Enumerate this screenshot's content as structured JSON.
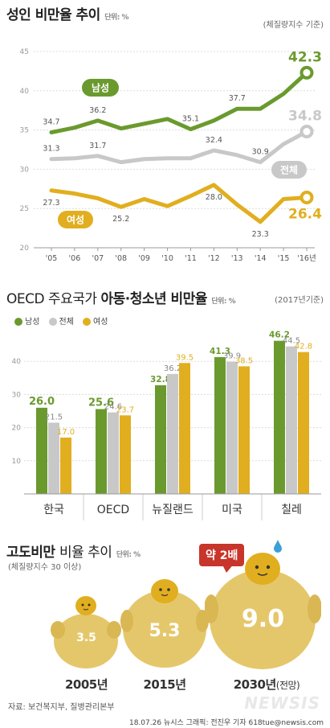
{
  "section1": {
    "title": "성인 비만율 추이",
    "unit": "단위: %",
    "note": "(체질량지수 기준)"
  },
  "section2": {
    "title_prefix": "OECD 주요국가 ",
    "title_bold": "아동·청소년 비만율",
    "unit": "단위: %",
    "note": "(2017년기준)",
    "legend": [
      {
        "label": "남성",
        "color": "#6a9a2e"
      },
      {
        "label": "전체",
        "color": "#c8c8c8"
      },
      {
        "label": "여성",
        "color": "#e1ae1f"
      }
    ]
  },
  "section3": {
    "title_bold": "고도비만 ",
    "title_light": "비율 추이",
    "unit": "단위: %",
    "note": "(체질량지수 30 이상)",
    "badge": "약 2배",
    "items": [
      {
        "year": "2005년",
        "suffix": "",
        "value": "3.5"
      },
      {
        "year": "2015년",
        "suffix": "",
        "value": "5.3"
      },
      {
        "year": "2030년",
        "suffix": "(전망)",
        "value": "9.0"
      }
    ]
  },
  "footer": {
    "source": "자료: 보건복지부, 질병관리본부",
    "credit": "18.07.26 뉴시스 그래픽: 전진우 기자 618tue@newsis.com",
    "logo": "NEWSIS"
  },
  "chart_data": [
    {
      "type": "line",
      "title": "성인 비만율 추이",
      "x": [
        "'05",
        "'06",
        "'07",
        "'08",
        "'09",
        "'10",
        "'11",
        "'12",
        "'13",
        "'14",
        "'15",
        "'16년"
      ],
      "ylim": [
        20,
        45
      ],
      "yticks": [
        20,
        25,
        30,
        35,
        40,
        45
      ],
      "series": [
        {
          "name": "남성",
          "color": "#6a9a2e",
          "values": [
            34.7,
            35.3,
            36.2,
            35.2,
            35.8,
            36.4,
            35.1,
            36.2,
            37.7,
            37.7,
            39.6,
            42.3
          ],
          "labels": {
            "0": "34.7",
            "2": "36.2",
            "6": "35.1",
            "8": "37.7",
            "11": "42.3"
          }
        },
        {
          "name": "전체",
          "color": "#c8c8c8",
          "values": [
            31.3,
            31.4,
            31.7,
            30.9,
            31.3,
            31.4,
            31.4,
            32.4,
            31.8,
            30.9,
            33.2,
            34.8
          ],
          "labels": {
            "0": "31.3",
            "2": "31.7",
            "7": "32.4",
            "9": "30.9",
            "11": "34.8"
          }
        },
        {
          "name": "여성",
          "color": "#e1ae1f",
          "values": [
            27.3,
            26.9,
            26.3,
            25.2,
            26.2,
            25.3,
            26.6,
            28.0,
            25.5,
            23.3,
            26.2,
            26.4
          ],
          "labels": {
            "0": "27.3",
            "3": "25.2",
            "7": "28.0",
            "9": "23.3",
            "11": "26.4"
          }
        }
      ]
    },
    {
      "type": "bar",
      "title": "OECD 주요국가 아동·청소년 비만율",
      "categories": [
        "한국",
        "OECD",
        "뉴질랜드",
        "미국",
        "칠레"
      ],
      "ylim": [
        0,
        50
      ],
      "yticks": [
        10,
        20,
        30,
        40
      ],
      "series": [
        {
          "name": "남성",
          "color": "#6a9a2e",
          "values": [
            26.0,
            25.6,
            32.8,
            41.3,
            46.2
          ]
        },
        {
          "name": "전체",
          "color": "#c8c8c8",
          "values": [
            21.5,
            24.6,
            36.2,
            39.9,
            44.5
          ]
        },
        {
          "name": "여성",
          "color": "#e1ae1f",
          "values": [
            17.0,
            23.7,
            39.5,
            38.5,
            42.8
          ]
        }
      ]
    }
  ]
}
